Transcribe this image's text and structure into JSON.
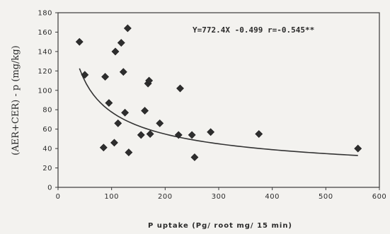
{
  "chart_data": {
    "type": "scatter",
    "xlabel": "P uptake (Pg/ root mg/ 15 min)",
    "ylabel": "(AER+CER) - p (mg/kg)",
    "xlim": [
      0,
      600
    ],
    "ylim": [
      0,
      180
    ],
    "x_ticks": [
      0,
      100,
      200,
      300,
      400,
      500,
      600
    ],
    "y_ticks": [
      0,
      20,
      40,
      60,
      80,
      100,
      120,
      140,
      160,
      180
    ],
    "grid": false,
    "legend": "none",
    "marker": "diamond",
    "points": [
      {
        "x": 40,
        "y": 150
      },
      {
        "x": 50,
        "y": 116
      },
      {
        "x": 85,
        "y": 41
      },
      {
        "x": 88,
        "y": 114
      },
      {
        "x": 95,
        "y": 87
      },
      {
        "x": 105,
        "y": 46
      },
      {
        "x": 107,
        "y": 140
      },
      {
        "x": 112,
        "y": 66
      },
      {
        "x": 118,
        "y": 149
      },
      {
        "x": 122,
        "y": 119
      },
      {
        "x": 125,
        "y": 77
      },
      {
        "x": 130,
        "y": 164
      },
      {
        "x": 132,
        "y": 36
      },
      {
        "x": 155,
        "y": 54
      },
      {
        "x": 162,
        "y": 79
      },
      {
        "x": 168,
        "y": 107
      },
      {
        "x": 170,
        "y": 110
      },
      {
        "x": 172,
        "y": 55
      },
      {
        "x": 190,
        "y": 66
      },
      {
        "x": 225,
        "y": 54
      },
      {
        "x": 228,
        "y": 102
      },
      {
        "x": 250,
        "y": 54
      },
      {
        "x": 255,
        "y": 31
      },
      {
        "x": 285,
        "y": 57
      },
      {
        "x": 375,
        "y": 55
      },
      {
        "x": 560,
        "y": 40
      }
    ],
    "fit": {
      "equation": "Y = 772.4 X^-0.499",
      "a": 772.4,
      "b": -0.499,
      "x_range": [
        40,
        560
      ]
    },
    "annotation": "Y=772.4X -0.499   r=-0.545**"
  }
}
